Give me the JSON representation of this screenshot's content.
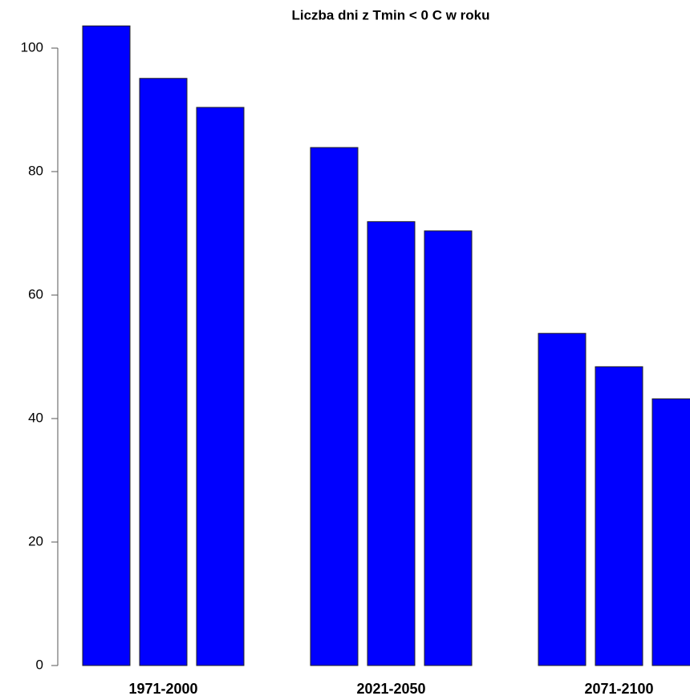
{
  "chart_data": {
    "type": "bar",
    "title": "Liczba dni z Tmin < 0 C w roku",
    "categories": [
      null,
      "1971-2000",
      null,
      null,
      null,
      "2021-2050",
      null,
      null,
      null,
      "2071-2100",
      null
    ],
    "values": [
      103.6,
      95.1,
      90.4,
      0,
      83.9,
      71.9,
      70.4,
      0,
      53.8,
      48.4,
      43.2
    ],
    "color": "#0000ff",
    "ylim": [
      0,
      107
    ],
    "yticks": [
      0,
      20,
      40,
      60,
      80,
      100
    ]
  }
}
